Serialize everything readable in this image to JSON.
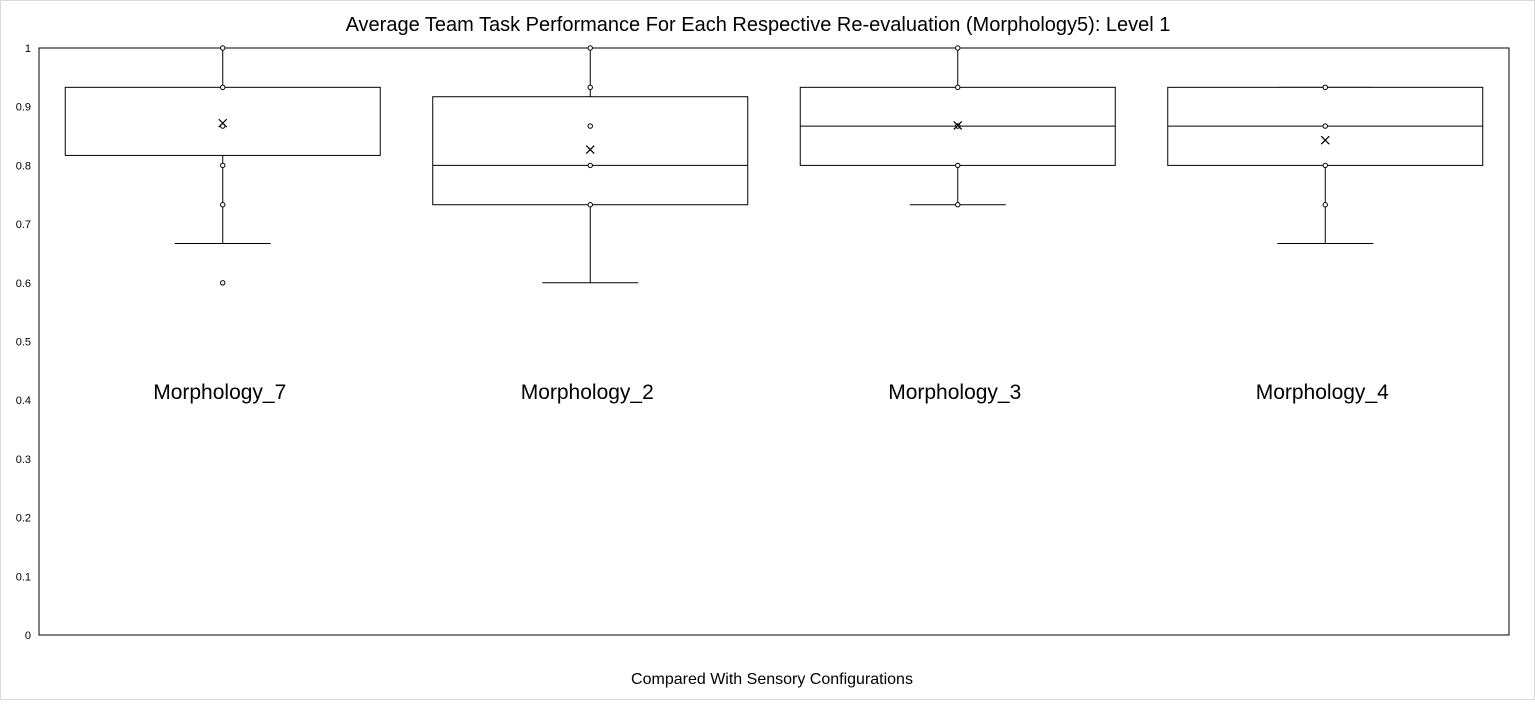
{
  "chart_data": {
    "type": "boxplot",
    "title": "Average Team Task Performance For Each Respective Re-evaluation (Morphology5):  Level 1",
    "xlabel": "Compared With Sensory Configurations",
    "ylabel": "",
    "ylim": [
      0,
      1
    ],
    "yticks": [
      "0",
      "0.1",
      "0.2",
      "0.3",
      "0.4",
      "0.5",
      "0.6",
      "0.7",
      "0.8",
      "0.9",
      "1"
    ],
    "grid": false,
    "legend": "none",
    "colors": {
      "box_stroke": "#000000",
      "text": "#000000",
      "frame": "#d9d9d9"
    },
    "series": [
      {
        "label": "Morphology_7",
        "whisker_low": 0.667,
        "q1": 0.817,
        "median": null,
        "q3": 0.933,
        "whisker_high": 1.0,
        "mean": 0.872,
        "points": [
          1.0,
          0.933,
          0.867,
          0.8,
          0.733
        ],
        "outliers": [
          0.6
        ]
      },
      {
        "label": "Morphology_2",
        "whisker_low": 0.6,
        "q1": 0.733,
        "median": 0.8,
        "q3": 0.917,
        "whisker_high": 1.0,
        "mean": 0.827,
        "points": [
          1.0,
          0.933,
          0.867,
          0.8,
          0.733
        ],
        "outliers": []
      },
      {
        "label": "Morphology_3",
        "whisker_low": 0.733,
        "q1": 0.8,
        "median": 0.867,
        "q3": 0.933,
        "whisker_high": 1.0,
        "mean": 0.868,
        "points": [
          1.0,
          0.933,
          0.867,
          0.8,
          0.733
        ],
        "outliers": []
      },
      {
        "label": "Morphology_4",
        "whisker_low": 0.667,
        "q1": 0.8,
        "median": 0.867,
        "q3": 0.933,
        "whisker_high": 0.933,
        "mean": 0.843,
        "points": [
          0.933,
          0.867,
          0.8,
          0.733
        ],
        "outliers": []
      }
    ]
  }
}
